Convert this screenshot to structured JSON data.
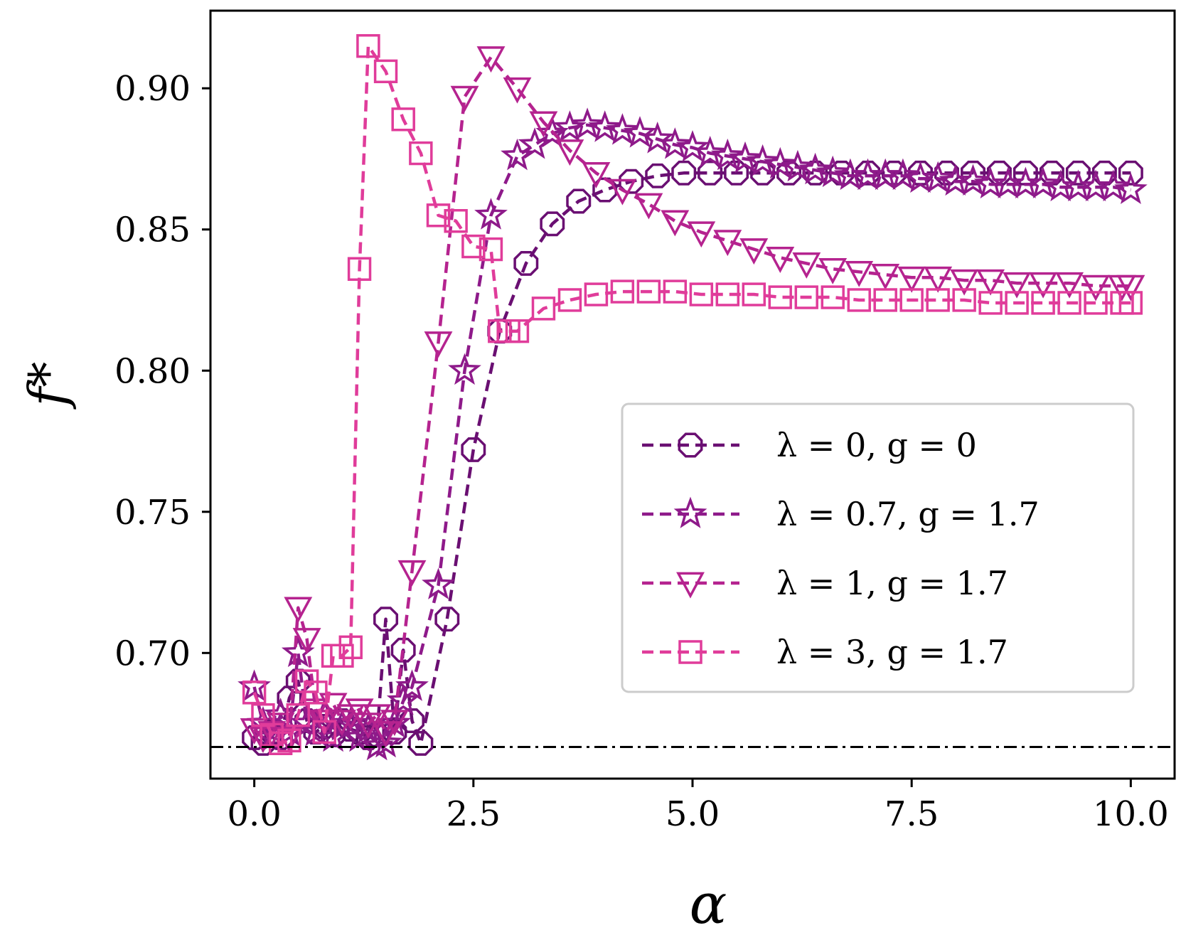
{
  "chart_data": {
    "type": "line",
    "title": "",
    "xlabel": "α",
    "ylabel": "f*",
    "xlim": [
      -0.5,
      10.5
    ],
    "ylim": [
      0.6555,
      0.9275
    ],
    "xticks": [
      0,
      2.5,
      5,
      7.5,
      10
    ],
    "xtick_labels": [
      "0.0",
      "2.5",
      "5.0",
      "7.5",
      "10.0"
    ],
    "yticks": [
      0.7,
      0.75,
      0.8,
      0.85,
      0.9
    ],
    "ytick_labels": [
      "0.70",
      "0.75",
      "0.80",
      "0.85",
      "0.90"
    ],
    "legend_position": "center-right",
    "reference_line": {
      "y": 0.6667,
      "style": "dash-dot",
      "color": "#000000"
    },
    "series": [
      {
        "name": "λ = 0, g = 0",
        "marker": "octagon",
        "color": "#6a0f72",
        "x": [
          0,
          0.1,
          0.2,
          0.3,
          0.4,
          0.5,
          0.6,
          0.7,
          0.8,
          0.9,
          1.0,
          1.1,
          1.2,
          1.3,
          1.4,
          1.5,
          1.6,
          1.7,
          1.8,
          1.9,
          2.2,
          2.5,
          2.8,
          3.1,
          3.4,
          3.7,
          4.0,
          4.3,
          4.6,
          4.9,
          5.2,
          5.5,
          5.8,
          6.1,
          6.4,
          6.7,
          7.0,
          7.3,
          7.6,
          7.9,
          8.2,
          8.5,
          8.8,
          9.1,
          9.4,
          9.7,
          10.0
        ],
        "values": [
          0.67,
          0.668,
          0.672,
          0.67,
          0.684,
          0.69,
          0.676,
          0.672,
          0.674,
          0.671,
          0.676,
          0.673,
          0.672,
          0.67,
          0.671,
          0.712,
          0.672,
          0.701,
          0.676,
          0.668,
          0.712,
          0.772,
          0.814,
          0.838,
          0.852,
          0.86,
          0.864,
          0.867,
          0.869,
          0.87,
          0.87,
          0.87,
          0.87,
          0.87,
          0.87,
          0.87,
          0.87,
          0.87,
          0.87,
          0.87,
          0.87,
          0.87,
          0.87,
          0.87,
          0.87,
          0.87,
          0.87
        ]
      },
      {
        "name": "λ = 0.7, g = 1.7",
        "marker": "star",
        "color": "#8e1a8a",
        "x": [
          0,
          0.1,
          0.2,
          0.3,
          0.4,
          0.5,
          0.6,
          0.7,
          0.8,
          0.9,
          1.0,
          1.1,
          1.2,
          1.3,
          1.4,
          1.5,
          1.6,
          1.7,
          1.8,
          2.1,
          2.4,
          2.7,
          3.0,
          3.2,
          3.4,
          3.6,
          3.8,
          4.0,
          4.2,
          4.4,
          4.6,
          4.8,
          5.0,
          5.2,
          5.4,
          5.6,
          5.8,
          6.0,
          6.2,
          6.4,
          6.6,
          6.8,
          7.0,
          7.2,
          7.4,
          7.6,
          7.8,
          8.0,
          8.2,
          8.4,
          8.6,
          8.8,
          9.0,
          9.2,
          9.4,
          9.6,
          9.8,
          10.0
        ],
        "values": [
          0.688,
          0.675,
          0.67,
          0.678,
          0.672,
          0.7,
          0.675,
          0.672,
          0.678,
          0.67,
          0.674,
          0.675,
          0.67,
          0.673,
          0.667,
          0.668,
          0.675,
          0.683,
          0.688,
          0.724,
          0.8,
          0.855,
          0.876,
          0.88,
          0.884,
          0.886,
          0.887,
          0.886,
          0.885,
          0.884,
          0.882,
          0.88,
          0.879,
          0.877,
          0.876,
          0.875,
          0.874,
          0.873,
          0.872,
          0.871,
          0.87,
          0.869,
          0.869,
          0.869,
          0.869,
          0.868,
          0.868,
          0.867,
          0.867,
          0.866,
          0.866,
          0.866,
          0.866,
          0.865,
          0.865,
          0.865,
          0.865,
          0.864
        ]
      },
      {
        "name": "λ = 1, g = 1.7",
        "marker": "triangle-down",
        "color": "#b5238f",
        "x": [
          0,
          0.1,
          0.2,
          0.3,
          0.4,
          0.5,
          0.6,
          0.7,
          0.8,
          0.9,
          1.0,
          1.1,
          1.2,
          1.3,
          1.4,
          1.5,
          1.6,
          1.8,
          2.1,
          2.4,
          2.7,
          3.0,
          3.3,
          3.6,
          3.9,
          4.2,
          4.5,
          4.8,
          5.1,
          5.4,
          5.7,
          6.0,
          6.3,
          6.6,
          6.9,
          7.2,
          7.5,
          7.8,
          8.1,
          8.4,
          8.7,
          9.0,
          9.3,
          9.6,
          9.9,
          10.0
        ],
        "values": [
          0.673,
          0.67,
          0.672,
          0.675,
          0.67,
          0.716,
          0.705,
          0.68,
          0.676,
          0.682,
          0.676,
          0.678,
          0.68,
          0.675,
          0.678,
          0.672,
          0.676,
          0.729,
          0.81,
          0.897,
          0.911,
          0.9,
          0.888,
          0.878,
          0.87,
          0.864,
          0.859,
          0.853,
          0.849,
          0.846,
          0.843,
          0.84,
          0.838,
          0.836,
          0.835,
          0.834,
          0.833,
          0.833,
          0.832,
          0.832,
          0.831,
          0.831,
          0.831,
          0.83,
          0.83,
          0.83
        ]
      },
      {
        "name": "λ = 3, g = 1.7",
        "marker": "square",
        "color": "#e03c9a",
        "x": [
          0,
          0.1,
          0.2,
          0.3,
          0.4,
          0.5,
          0.6,
          0.7,
          0.8,
          0.9,
          1.0,
          1.1,
          1.2,
          1.3,
          1.5,
          1.7,
          1.9,
          2.1,
          2.3,
          2.5,
          2.7,
          2.8,
          2.9,
          3.0,
          3.3,
          3.6,
          3.9,
          4.2,
          4.5,
          4.8,
          5.1,
          5.4,
          5.7,
          6.0,
          6.3,
          6.6,
          6.9,
          7.2,
          7.5,
          7.8,
          8.1,
          8.4,
          8.7,
          9.0,
          9.3,
          9.6,
          9.9,
          10.0
        ],
        "values": [
          0.686,
          0.678,
          0.671,
          0.668,
          0.669,
          0.678,
          0.69,
          0.686,
          0.672,
          0.699,
          0.699,
          0.702,
          0.836,
          0.915,
          0.906,
          0.889,
          0.877,
          0.855,
          0.853,
          0.844,
          0.843,
          0.814,
          0.814,
          0.814,
          0.822,
          0.825,
          0.827,
          0.828,
          0.828,
          0.828,
          0.827,
          0.827,
          0.827,
          0.826,
          0.826,
          0.826,
          0.825,
          0.825,
          0.825,
          0.825,
          0.825,
          0.824,
          0.824,
          0.824,
          0.824,
          0.824,
          0.824,
          0.824
        ]
      }
    ]
  }
}
